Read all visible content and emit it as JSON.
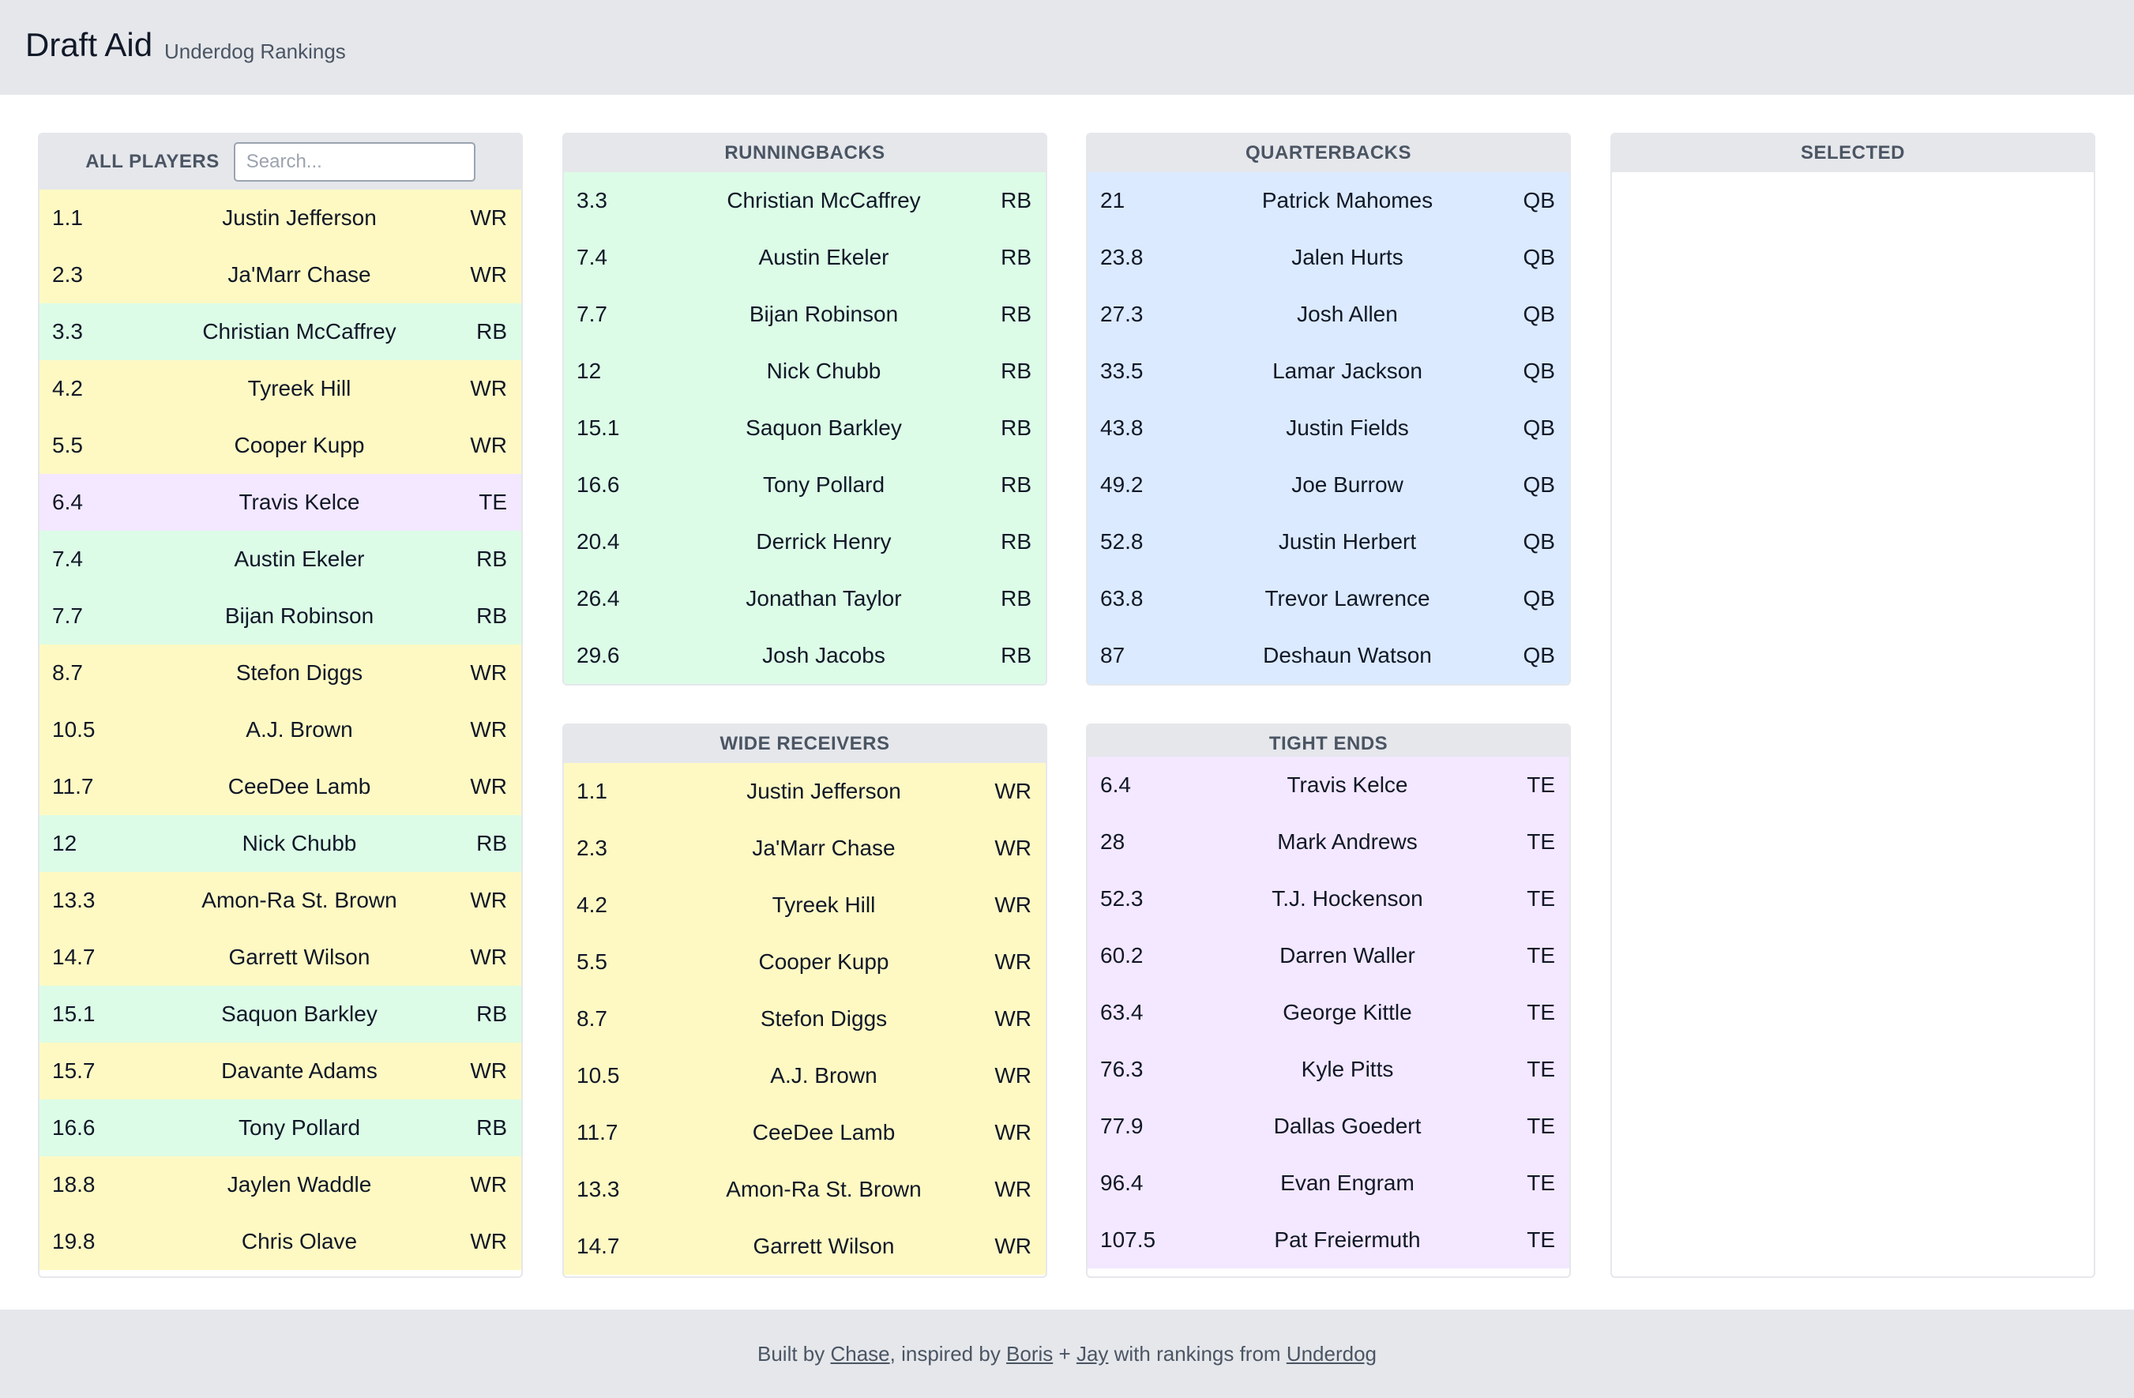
{
  "app": {
    "title": "Draft Aid",
    "subtitle": "Underdog Rankings"
  },
  "colors": {
    "WR": "#fef9c3",
    "RB": "#dcfce7",
    "QB": "#dbeafe",
    "TE": "#f3e8ff",
    "header_bg": "#e5e7eb"
  },
  "all_players": {
    "title": "ALL PLAYERS",
    "search_placeholder": "Search...",
    "search_value": "",
    "rows": [
      {
        "rank": "1.1",
        "name": "Justin Jefferson",
        "pos": "WR"
      },
      {
        "rank": "2.3",
        "name": "Ja'Marr Chase",
        "pos": "WR"
      },
      {
        "rank": "3.3",
        "name": "Christian McCaffrey",
        "pos": "RB"
      },
      {
        "rank": "4.2",
        "name": "Tyreek Hill",
        "pos": "WR"
      },
      {
        "rank": "5.5",
        "name": "Cooper Kupp",
        "pos": "WR"
      },
      {
        "rank": "6.4",
        "name": "Travis Kelce",
        "pos": "TE"
      },
      {
        "rank": "7.4",
        "name": "Austin Ekeler",
        "pos": "RB"
      },
      {
        "rank": "7.7",
        "name": "Bijan Robinson",
        "pos": "RB"
      },
      {
        "rank": "8.7",
        "name": "Stefon Diggs",
        "pos": "WR"
      },
      {
        "rank": "10.5",
        "name": "A.J. Brown",
        "pos": "WR"
      },
      {
        "rank": "11.7",
        "name": "CeeDee Lamb",
        "pos": "WR"
      },
      {
        "rank": "12",
        "name": "Nick Chubb",
        "pos": "RB"
      },
      {
        "rank": "13.3",
        "name": "Amon-Ra St. Brown",
        "pos": "WR"
      },
      {
        "rank": "14.7",
        "name": "Garrett Wilson",
        "pos": "WR"
      },
      {
        "rank": "15.1",
        "name": "Saquon Barkley",
        "pos": "RB"
      },
      {
        "rank": "15.7",
        "name": "Davante Adams",
        "pos": "WR"
      },
      {
        "rank": "16.6",
        "name": "Tony Pollard",
        "pos": "RB"
      },
      {
        "rank": "18.8",
        "name": "Jaylen Waddle",
        "pos": "WR"
      },
      {
        "rank": "19.8",
        "name": "Chris Olave",
        "pos": "WR"
      }
    ]
  },
  "runningbacks": {
    "title": "RUNNINGBACKS",
    "rows": [
      {
        "rank": "3.3",
        "name": "Christian McCaffrey",
        "pos": "RB"
      },
      {
        "rank": "7.4",
        "name": "Austin Ekeler",
        "pos": "RB"
      },
      {
        "rank": "7.7",
        "name": "Bijan Robinson",
        "pos": "RB"
      },
      {
        "rank": "12",
        "name": "Nick Chubb",
        "pos": "RB"
      },
      {
        "rank": "15.1",
        "name": "Saquon Barkley",
        "pos": "RB"
      },
      {
        "rank": "16.6",
        "name": "Tony Pollard",
        "pos": "RB"
      },
      {
        "rank": "20.4",
        "name": "Derrick Henry",
        "pos": "RB"
      },
      {
        "rank": "26.4",
        "name": "Jonathan Taylor",
        "pos": "RB"
      },
      {
        "rank": "29.6",
        "name": "Josh Jacobs",
        "pos": "RB"
      }
    ]
  },
  "quarterbacks": {
    "title": "QUARTERBACKS",
    "rows": [
      {
        "rank": "21",
        "name": "Patrick Mahomes",
        "pos": "QB"
      },
      {
        "rank": "23.8",
        "name": "Jalen Hurts",
        "pos": "QB"
      },
      {
        "rank": "27.3",
        "name": "Josh Allen",
        "pos": "QB"
      },
      {
        "rank": "33.5",
        "name": "Lamar Jackson",
        "pos": "QB"
      },
      {
        "rank": "43.8",
        "name": "Justin Fields",
        "pos": "QB"
      },
      {
        "rank": "49.2",
        "name": "Joe Burrow",
        "pos": "QB"
      },
      {
        "rank": "52.8",
        "name": "Justin Herbert",
        "pos": "QB"
      },
      {
        "rank": "63.8",
        "name": "Trevor Lawrence",
        "pos": "QB"
      },
      {
        "rank": "87",
        "name": "Deshaun Watson",
        "pos": "QB"
      }
    ]
  },
  "wide_receivers": {
    "title": "WIDE RECEIVERS",
    "rows": [
      {
        "rank": "1.1",
        "name": "Justin Jefferson",
        "pos": "WR"
      },
      {
        "rank": "2.3",
        "name": "Ja'Marr Chase",
        "pos": "WR"
      },
      {
        "rank": "4.2",
        "name": "Tyreek Hill",
        "pos": "WR"
      },
      {
        "rank": "5.5",
        "name": "Cooper Kupp",
        "pos": "WR"
      },
      {
        "rank": "8.7",
        "name": "Stefon Diggs",
        "pos": "WR"
      },
      {
        "rank": "10.5",
        "name": "A.J. Brown",
        "pos": "WR"
      },
      {
        "rank": "11.7",
        "name": "CeeDee Lamb",
        "pos": "WR"
      },
      {
        "rank": "13.3",
        "name": "Amon-Ra St. Brown",
        "pos": "WR"
      },
      {
        "rank": "14.7",
        "name": "Garrett Wilson",
        "pos": "WR"
      }
    ]
  },
  "tight_ends": {
    "title": "TIGHT ENDS",
    "rows": [
      {
        "rank": "6.4",
        "name": "Travis Kelce",
        "pos": "TE"
      },
      {
        "rank": "28",
        "name": "Mark Andrews",
        "pos": "TE"
      },
      {
        "rank": "52.3",
        "name": "T.J. Hockenson",
        "pos": "TE"
      },
      {
        "rank": "60.2",
        "name": "Darren Waller",
        "pos": "TE"
      },
      {
        "rank": "63.4",
        "name": "George Kittle",
        "pos": "TE"
      },
      {
        "rank": "76.3",
        "name": "Kyle Pitts",
        "pos": "TE"
      },
      {
        "rank": "77.9",
        "name": "Dallas Goedert",
        "pos": "TE"
      },
      {
        "rank": "96.4",
        "name": "Evan Engram",
        "pos": "TE"
      },
      {
        "rank": "107.5",
        "name": "Pat Freiermuth",
        "pos": "TE"
      }
    ]
  },
  "selected": {
    "title": "SELECTED",
    "rows": []
  },
  "footer": {
    "built_by": "Built by ",
    "chase": "Chase",
    "inspired_by": ", inspired by ",
    "boris": "Boris",
    "plus": " + ",
    "jay": "Jay",
    "with_rankings": " with rankings from ",
    "underdog": "Underdog"
  }
}
